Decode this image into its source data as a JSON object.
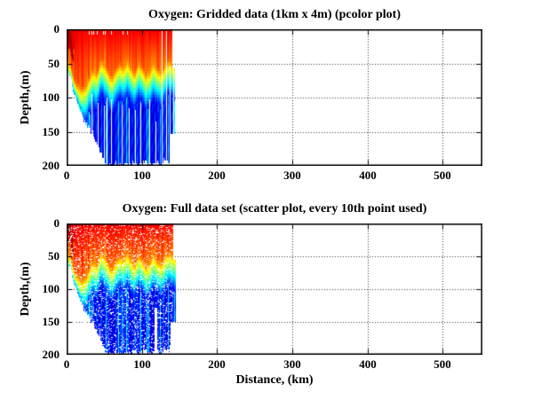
{
  "figure": {
    "background": "#ffffff",
    "frame_color": "#000000",
    "grid_style": "dotted"
  },
  "chart_data": [
    {
      "type": "pcolor",
      "title": "Oxygen: Gridded data (1km x 4m) (pcolor plot)",
      "xlabel": "",
      "ylabel": "Depth,(m)",
      "xlim": [
        0,
        553
      ],
      "ylim": [
        0,
        200
      ],
      "y_reversed": true,
      "xticks": [
        0,
        100,
        200,
        300,
        400,
        500
      ],
      "yticks": [
        0,
        50,
        100,
        150,
        200
      ],
      "grid": true,
      "colormap": "jet",
      "cell_size_km_m": [
        1,
        4
      ],
      "data_extent_km": 140,
      "surface_value": 0.88,
      "deep_value": 0.11,
      "profiles": {
        "x_km": [
          0,
          5,
          10,
          15,
          20,
          25,
          30,
          35,
          40,
          45,
          50,
          55,
          60,
          65,
          70,
          75,
          80,
          85,
          90,
          95,
          100,
          105,
          110,
          115,
          120,
          125,
          130,
          135,
          140
        ],
        "oxycline_depth_m": [
          70,
          85,
          100,
          108,
          112,
          108,
          95,
          83,
          90,
          71,
          77,
          88,
          95,
          84,
          76,
          81,
          70,
          80,
          91,
          74,
          80,
          93,
          85,
          72,
          83,
          89,
          78,
          71,
          75
        ],
        "bottom_depth_m": [
          55,
          68,
          95,
          110,
          125,
          135,
          143,
          153,
          166,
          178,
          190,
          200,
          198,
          194,
          200,
          197,
          195,
          200,
          190,
          200,
          196,
          189,
          200,
          196,
          193,
          200,
          187,
          196,
          172
        ]
      },
      "gaps": [
        {
          "x": 33,
          "from": 95
        },
        {
          "x": 41,
          "from": 108
        },
        {
          "x": 50,
          "from": 112
        },
        {
          "x": 53,
          "from": 100
        },
        {
          "x": 59,
          "from": 102
        },
        {
          "x": 73,
          "from": 110
        },
        {
          "x": 83,
          "from": 115
        },
        {
          "x": 91,
          "from": 118
        },
        {
          "x": 98,
          "from": 108
        },
        {
          "x": 110,
          "from": 102
        },
        {
          "x": 118,
          "from": 135
        },
        {
          "x": 126,
          "from": 2
        },
        {
          "x": 132,
          "from": 2
        },
        {
          "x": 137,
          "from": 55
        }
      ],
      "top_notches_km": [
        30,
        33,
        36,
        40,
        48,
        51,
        59,
        74,
        80
      ]
    },
    {
      "type": "scatter",
      "title": "Oxygen: Full data set (scatter plot, every 10th point used)",
      "xlabel": "Distance, (km)",
      "ylabel": "Depth,(m)",
      "xlim": [
        0,
        553
      ],
      "ylim": [
        0,
        200
      ],
      "y_reversed": true,
      "xticks": [
        0,
        100,
        200,
        300,
        400,
        500
      ],
      "yticks": [
        0,
        50,
        100,
        150,
        200
      ],
      "grid": true,
      "colormap": "jet",
      "marker": "point",
      "subsample": "every 10th point",
      "data_extent_km": 141,
      "surface_value": 0.88,
      "deep_value": 0.11,
      "speckle_density": 0.1,
      "profiles": {
        "x_km": [
          0,
          5,
          10,
          15,
          20,
          25,
          30,
          35,
          40,
          45,
          50,
          55,
          60,
          65,
          70,
          75,
          80,
          85,
          90,
          95,
          100,
          105,
          110,
          115,
          120,
          125,
          130,
          135,
          140
        ],
        "oxycline_depth_m": [
          70,
          85,
          100,
          108,
          112,
          108,
          95,
          83,
          90,
          71,
          77,
          88,
          95,
          84,
          76,
          81,
          70,
          80,
          91,
          74,
          80,
          93,
          85,
          72,
          83,
          89,
          78,
          71,
          75
        ],
        "bottom_depth_m": [
          55,
          68,
          95,
          110,
          125,
          135,
          143,
          153,
          166,
          178,
          190,
          200,
          198,
          194,
          200,
          197,
          195,
          200,
          190,
          200,
          196,
          189,
          200,
          196,
          193,
          200,
          187,
          196,
          172
        ]
      },
      "gaps": [
        {
          "x": 36,
          "from": 150
        },
        {
          "x": 44,
          "from": 160
        },
        {
          "x": 117,
          "w": 3.5,
          "from": 128
        }
      ],
      "top_notches_km": []
    }
  ]
}
